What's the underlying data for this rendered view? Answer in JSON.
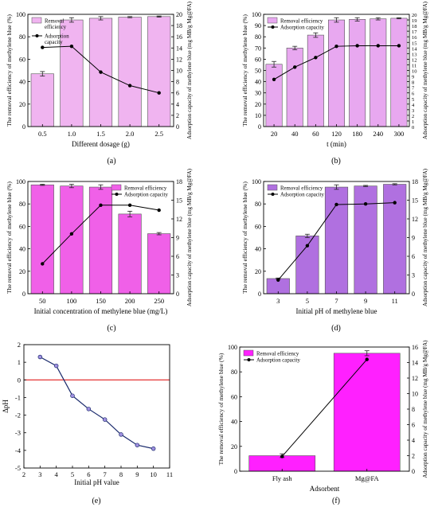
{
  "panel_labels": [
    "(a)",
    "(b)",
    "(c)",
    "(d)",
    "(e)",
    "(f)"
  ],
  "chart_data": [
    {
      "type": "bar",
      "panel": "(a)",
      "xlabel": "Different dosage (g)",
      "ylabel": "The removal efficiency of methylene blue (%)",
      "y2label": "Adsorption capacity of methylene blue (mg MB/g Mg@FA)",
      "categories": [
        "0.5",
        "1.0",
        "1.5",
        "2.0",
        "2.5"
      ],
      "ylim": [
        0,
        100
      ],
      "yticks": [
        0,
        20,
        40,
        60,
        80,
        100
      ],
      "y2lim": [
        0,
        20
      ],
      "y2ticks": [
        0,
        2,
        4,
        6,
        8,
        10,
        12,
        14,
        16,
        18,
        20
      ],
      "legend_position": "top-left",
      "series": [
        {
          "name": "Removal efficiency",
          "kind": "bar",
          "axis": "left",
          "color": "#f0b4f0",
          "values": [
            47,
            95,
            96.5,
            97.5,
            98
          ],
          "errors": [
            2,
            2,
            1.5,
            0.5,
            0.5
          ]
        },
        {
          "name": "Adsorption capacity",
          "kind": "line",
          "axis": "right",
          "color": "#000000",
          "values": [
            14.1,
            14.3,
            9.7,
            7.3,
            6.0
          ]
        }
      ]
    },
    {
      "type": "bar",
      "panel": "(b)",
      "xlabel": "t (min)",
      "ylabel": "The removal efficiency of methylene blue (%)",
      "y2label": "Adsorption capacity of methylene blue (mg MB/g Mg@FA)",
      "categories": [
        "20",
        "40",
        "60",
        "120",
        "180",
        "240",
        "300"
      ],
      "ylim": [
        0,
        100
      ],
      "yticks": [
        0,
        10,
        20,
        30,
        40,
        50,
        60,
        70,
        80,
        90,
        100
      ],
      "y2lim": [
        0,
        20
      ],
      "y2ticks": [
        0,
        1,
        2,
        3,
        4,
        5,
        6,
        7,
        8,
        9,
        10,
        11,
        12,
        13,
        14,
        15,
        16,
        17,
        18,
        19,
        20
      ],
      "legend_position": "top-left",
      "series": [
        {
          "name": "Removal efficiency",
          "kind": "bar",
          "axis": "left",
          "color": "#e8a8f0",
          "values": [
            55.5,
            70,
            81.5,
            95,
            95.5,
            96,
            96.5
          ],
          "errors": [
            2.5,
            1.5,
            2,
            2,
            1.5,
            1,
            0.5
          ]
        },
        {
          "name": "Adsorption capacity",
          "kind": "line",
          "axis": "right",
          "color": "#000000",
          "values": [
            8.4,
            10.6,
            12.3,
            14.3,
            14.4,
            14.4,
            14.4
          ]
        }
      ]
    },
    {
      "type": "bar",
      "panel": "(c)",
      "xlabel": "Initial concentration of methylene blue (mg/L)",
      "ylabel": "The removal efficiency of methylene blue (%)",
      "y2label": "Adsorption capacity of methylene blue (mg MB/g Mg@FA)",
      "categories": [
        "50",
        "100",
        "150",
        "200",
        "250"
      ],
      "ylim": [
        0,
        100
      ],
      "yticks": [
        0,
        20,
        40,
        60,
        80,
        100
      ],
      "y2lim": [
        0,
        18
      ],
      "y2ticks": [
        0,
        3,
        6,
        9,
        12,
        15,
        18
      ],
      "legend_position": "top-right",
      "series": [
        {
          "name": "Removal efficiency",
          "kind": "bar",
          "axis": "left",
          "color": "#f060e8",
          "values": [
            97,
            96,
            95,
            71,
            53.5
          ],
          "errors": [
            0.5,
            1.5,
            2,
            2.5,
            1
          ]
        },
        {
          "name": "Adsorption capacity",
          "kind": "line",
          "axis": "right",
          "color": "#000000",
          "values": [
            4.8,
            9.6,
            14.2,
            14.2,
            13.4
          ]
        }
      ]
    },
    {
      "type": "bar",
      "panel": "(d)",
      "xlabel": "Initial pH of methylene blue",
      "ylabel": "The removal efficiency of methylene blue (%)",
      "y2label": "Adsorption capacity of methylene blue (mg MB/g Mg@FA)",
      "categories": [
        "3",
        "5",
        "7",
        "9",
        "11"
      ],
      "ylim": [
        0,
        100
      ],
      "yticks": [
        0,
        20,
        40,
        60,
        80,
        100
      ],
      "y2lim": [
        0,
        18
      ],
      "y2ticks": [
        0,
        3,
        6,
        9,
        12,
        15,
        18
      ],
      "legend_position": "top-left",
      "series": [
        {
          "name": "Removal efficiency",
          "kind": "bar",
          "axis": "left",
          "color": "#b070e0",
          "values": [
            13.5,
            51.5,
            95,
            96,
            97.5
          ],
          "errors": [
            0.5,
            1.5,
            2,
            0.5,
            0.5
          ]
        },
        {
          "name": "Adsorption capacity",
          "kind": "line",
          "axis": "right",
          "color": "#000000",
          "values": [
            2.2,
            7.7,
            14.3,
            14.4,
            14.6
          ]
        }
      ]
    },
    {
      "type": "line",
      "panel": "(e)",
      "xlabel": "Initial pH value",
      "ylabel": "ΔpH",
      "xlim": [
        2,
        11
      ],
      "xticks": [
        2,
        3,
        4,
        5,
        6,
        7,
        8,
        9,
        10,
        11
      ],
      "ylim": [
        -5,
        2
      ],
      "yticks": [
        -5,
        -4,
        -3,
        -2,
        -1,
        0,
        1,
        2
      ],
      "reference_line_y": 0,
      "series": [
        {
          "kind": "line",
          "color": "#1a2a6c",
          "marker_color": "#a090e0",
          "x": [
            3,
            4,
            5,
            6,
            7,
            8,
            9,
            10
          ],
          "values": [
            1.3,
            0.8,
            -0.9,
            -1.65,
            -2.25,
            -3.1,
            -3.7,
            -3.9
          ]
        }
      ]
    },
    {
      "type": "bar",
      "panel": "(f)",
      "xlabel": "Adsorbent",
      "ylabel": "The removal efficiency of methylene blue (%)",
      "y2label": "Adsorption capacity of methylene blue (mg MB/g Mg@FA)",
      "categories": [
        "Fly ash",
        "Mg@FA"
      ],
      "ylim": [
        0,
        100
      ],
      "yticks": [
        0,
        20,
        40,
        60,
        80,
        100
      ],
      "y2lim": [
        0,
        16
      ],
      "y2ticks": [
        0,
        2,
        4,
        6,
        8,
        10,
        12,
        14,
        16
      ],
      "legend_position": "top-left",
      "series": [
        {
          "name": "Removal efficiency",
          "kind": "bar",
          "axis": "left",
          "color": "#ff20ff",
          "values": [
            12.5,
            95
          ],
          "errors": [
            1.5,
            2
          ]
        },
        {
          "name": "Adsorption capacity",
          "kind": "line",
          "axis": "right",
          "color": "#000000",
          "values": [
            1.9,
            14.4
          ]
        }
      ]
    }
  ]
}
